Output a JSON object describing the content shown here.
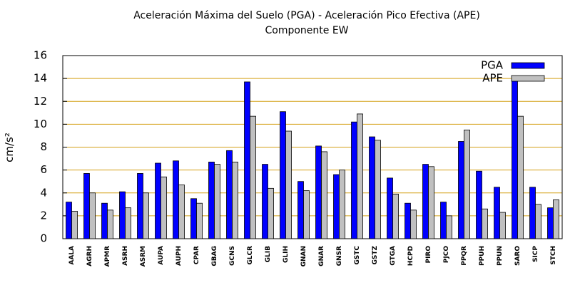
{
  "chart_data": {
    "type": "bar",
    "title": "Aceleración Máxima del Suelo (PGA) -  Aceleración Pico Efectiva (APE)",
    "subtitle": "Componente EW",
    "y_label": "cm/s²",
    "categories": [
      "AALA",
      "AGRH",
      "APMR",
      "ASRH",
      "ASRM",
      "AUPA",
      "AUPH",
      "CPAR",
      "GBAG",
      "GCNS",
      "GLCR",
      "GLIB",
      "GLIH",
      "GNAN",
      "GNAR",
      "GNSR",
      "GSTC",
      "GSTZ",
      "GTGA",
      "HCPD",
      "PIRO",
      "PJCO",
      "PPQR",
      "PPUH",
      "PPUN",
      "SARO",
      "SICP",
      "STCH"
    ],
    "series": [
      {
        "name": "PGA",
        "color": "#0000ff",
        "values": [
          3.2,
          5.7,
          3.1,
          4.1,
          5.7,
          6.6,
          6.8,
          3.5,
          6.7,
          7.7,
          13.7,
          6.5,
          11.1,
          5.0,
          8.1,
          5.6,
          10.2,
          8.9,
          5.3,
          3.1,
          6.5,
          3.2,
          8.5,
          5.9,
          4.5,
          14.2,
          4.5,
          2.7
        ]
      },
      {
        "name": "APE",
        "color": "#c0c0c0",
        "values": [
          2.4,
          4.0,
          2.5,
          2.7,
          4.0,
          5.4,
          4.7,
          3.1,
          6.5,
          6.7,
          10.7,
          4.4,
          9.4,
          4.2,
          7.6,
          6.0,
          10.9,
          8.6,
          3.9,
          2.5,
          6.3,
          2.0,
          9.5,
          2.6,
          2.3,
          10.7,
          3.0,
          3.4
        ]
      }
    ],
    "ylim": [
      0,
      16
    ],
    "yticks": [
      0,
      2,
      4,
      6,
      8,
      10,
      12,
      14,
      16
    ],
    "grid": true,
    "grid_color": "#d4a017",
    "legend": "top-right"
  }
}
